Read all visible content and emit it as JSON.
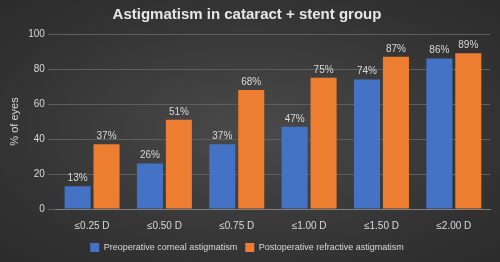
{
  "chart_data": {
    "type": "bar",
    "title": "Astigmatism in cataract + stent group",
    "y_label": "% of eyes",
    "categories": [
      "≤0.25 D",
      "≤0.50 D",
      "≤0.75 D",
      "≤1.00 D",
      "≤1.50 D",
      "≤2.00 D"
    ],
    "series": [
      {
        "name": "Preoperative corneal astigmatism",
        "color": "#4472c4",
        "values": [
          13,
          26,
          37,
          47,
          74,
          86
        ],
        "value_labels": [
          "13%",
          "26%",
          "37%",
          "47%",
          "74%",
          "86%"
        ]
      },
      {
        "name": "Postoperative refractive astigmatism",
        "color": "#ed7d31",
        "values": [
          37,
          51,
          68,
          75,
          87,
          89
        ],
        "value_labels": [
          "37%",
          "51%",
          "68%",
          "75%",
          "87%",
          "89%"
        ]
      }
    ],
    "ylim": [
      0,
      100
    ],
    "yticks": [
      0,
      20,
      40,
      60,
      80,
      100
    ],
    "grid": true,
    "legend": "bottom",
    "data_labels": true
  }
}
